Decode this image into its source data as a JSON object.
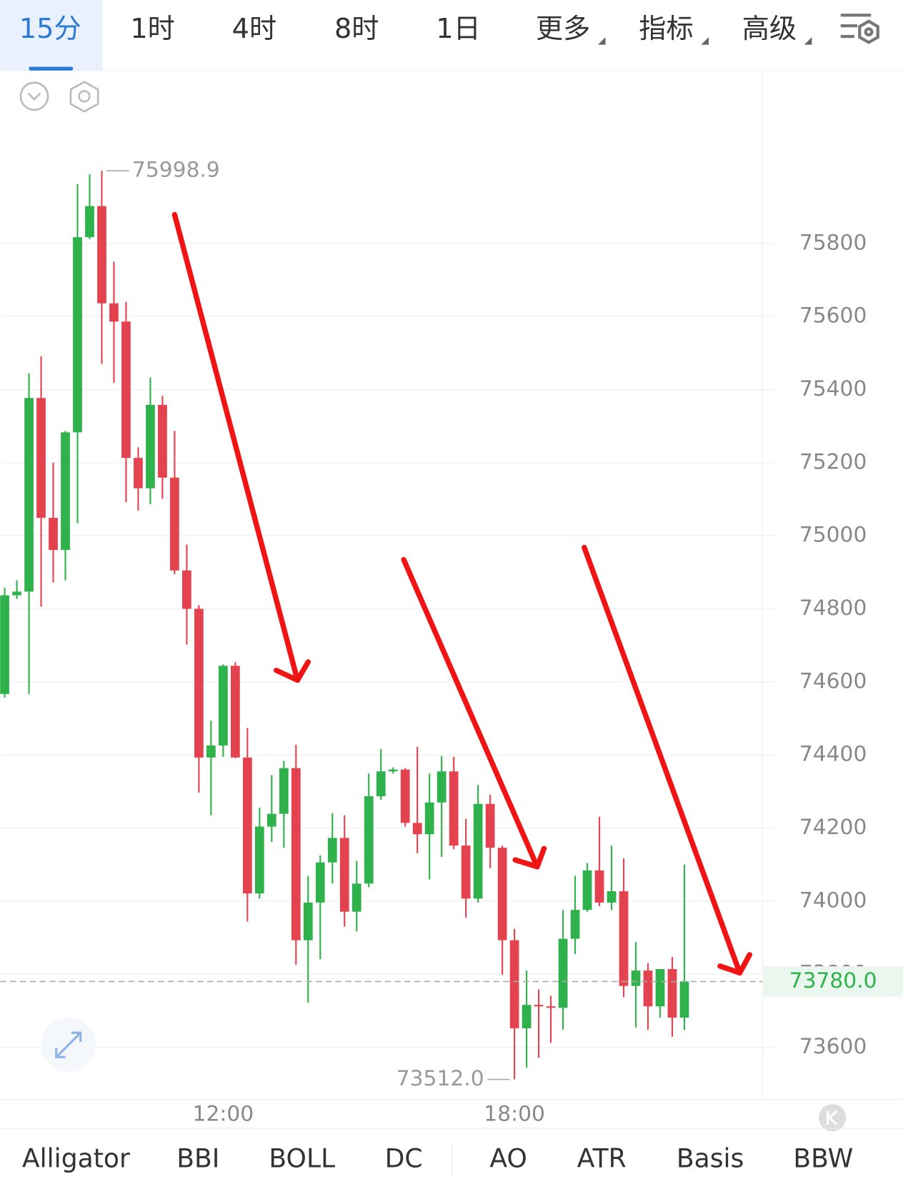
{
  "toolbar": {
    "tabs": [
      "15分",
      "1时",
      "4时",
      "8时",
      "1日",
      "更多",
      "指标",
      "高级"
    ],
    "active": 0
  },
  "chart_data": {
    "type": "candlestick",
    "categories": [
      null,
      null,
      null,
      null,
      null,
      null,
      null,
      null,
      null,
      null,
      null,
      null,
      null,
      null,
      null,
      null,
      null,
      null,
      "12:00",
      null,
      null,
      null,
      null,
      null,
      null,
      null,
      null,
      null,
      null,
      null,
      null,
      null,
      null,
      null,
      null,
      null,
      null,
      null,
      null,
      null,
      null,
      null,
      "18:00",
      null,
      null,
      null,
      null,
      null,
      null,
      null,
      null,
      null,
      null,
      null,
      null,
      null,
      null
    ],
    "open": [
      74567,
      74837,
      74847,
      75377,
      75049,
      74961,
      75283,
      75817,
      75902,
      75636,
      75586,
      75213,
      75130,
      75358,
      75159,
      74905,
      74800,
      74393,
      74426,
      74644,
      74393,
      74021,
      74204,
      74239,
      74364,
      73893,
      73996,
      74106,
      74173,
      73971,
      74048,
      74287,
      74355,
      74360,
      74214,
      74183,
      74270,
      74355,
      74152,
      74007,
      74266,
      74146,
      73893,
      73652,
      73716,
      73712,
      73708,
      73897,
      73976,
      74084,
      73996,
      74027,
      73768,
      73810,
      73712,
      73814,
      73681
    ],
    "high": [
      74858,
      74878,
      75445,
      75491,
      75200,
      75287,
      75962,
      75989,
      75998.9,
      75750,
      75640,
      75242,
      75433,
      75383,
      75287,
      74976,
      74810,
      74494,
      74648,
      74654,
      74474,
      74256,
      74345,
      74384,
      74428,
      74069,
      74125,
      74241,
      74235,
      74110,
      74349,
      74416,
      74366,
      74364,
      74422,
      74349,
      74397,
      74395,
      74225,
      74318,
      74291,
      74152,
      73924,
      73810,
      73758,
      73741,
      73976,
      74069,
      74104,
      74231,
      74152,
      74117,
      73888,
      73830,
      73814,
      73847,
      74100
    ],
    "low": [
      74557,
      74827,
      74567,
      74806,
      74872,
      74878,
      75034,
      75812,
      75470,
      75418,
      75092,
      75069,
      75086,
      75101,
      74895,
      74702,
      74297,
      74235,
      74395,
      74391,
      73944,
      74007,
      74162,
      74146,
      73826,
      73722,
      73841,
      74048,
      73930,
      73917,
      74038,
      74277,
      74349,
      74204,
      74131,
      74059,
      74121,
      74142,
      73955,
      73996,
      74090,
      73799,
      73512,
      73544,
      73571,
      73612,
      73648,
      73855,
      73971,
      73986,
      73976,
      73737,
      73654,
      73648,
      73681,
      73629,
      73648
    ],
    "close": [
      74837,
      74847,
      75377,
      75049,
      74961,
      75283,
      75817,
      75902,
      75636,
      75586,
      75213,
      75130,
      75358,
      75159,
      74905,
      74800,
      74393,
      74426,
      74644,
      74393,
      74021,
      74204,
      74239,
      74364,
      73893,
      73996,
      74106,
      74173,
      73971,
      74048,
      74287,
      74355,
      74360,
      74214,
      74183,
      74270,
      74355,
      74152,
      74007,
      74266,
      74146,
      73893,
      73652,
      73716,
      73712,
      73708,
      73897,
      73976,
      74084,
      73996,
      74027,
      73768,
      73810,
      73712,
      73814,
      73681,
      73780
    ],
    "up_color": "#2fb24c",
    "down_color": "#e5424f",
    "ylim": [
      73457,
      76269
    ],
    "yticks": [
      73600,
      73800,
      74000,
      74200,
      74400,
      74600,
      74800,
      75000,
      75200,
      75400,
      75600,
      75800
    ],
    "grid": true,
    "low_label": "73512.0",
    "last_price": {
      "value": 73780,
      "label": "73780.0"
    }
  },
  "indicators": [
    "Alligator",
    "BBI",
    "BOLL",
    "DC",
    "AO",
    "ATR",
    "Basis",
    "BBW"
  ]
}
